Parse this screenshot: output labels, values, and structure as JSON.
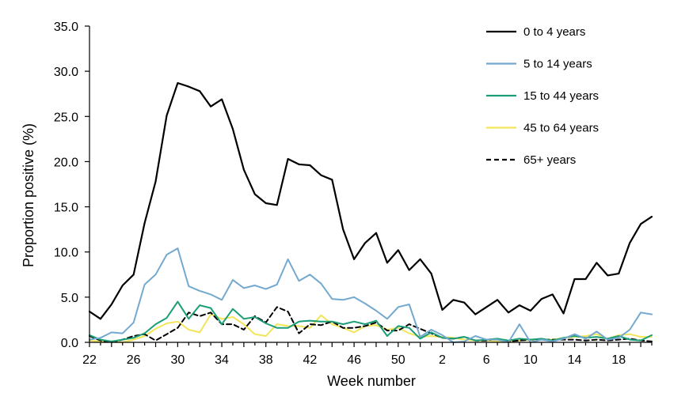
{
  "chart_data": {
    "type": "line",
    "xlabel": "Week number",
    "ylabel": "Proportion positive (%)",
    "ylim": [
      0,
      35
    ],
    "y_ticks": [
      "0.0",
      "5.0",
      "10.0",
      "15.0",
      "20.0",
      "25.0",
      "30.0",
      "35.0"
    ],
    "x_ticks": [
      "22",
      "26",
      "30",
      "34",
      "38",
      "42",
      "46",
      "50",
      "2",
      "6",
      "10",
      "14",
      "18"
    ],
    "weeks": [
      "22",
      "23",
      "24",
      "25",
      "26",
      "27",
      "28",
      "29",
      "30",
      "31",
      "32",
      "33",
      "34",
      "35",
      "36",
      "37",
      "38",
      "39",
      "40",
      "41",
      "42",
      "43",
      "44",
      "45",
      "46",
      "47",
      "48",
      "49",
      "50",
      "51",
      "52",
      "1",
      "2",
      "3",
      "4",
      "5",
      "6",
      "7",
      "8",
      "9",
      "10",
      "11",
      "12",
      "13",
      "14",
      "15",
      "16",
      "17",
      "18",
      "19",
      "20",
      "21"
    ],
    "grid": false,
    "legend_position": "top-right",
    "series": [
      {
        "name": "0 to 4 years",
        "color": "#000000",
        "dash": "solid",
        "values": [
          3.4,
          2.6,
          4.2,
          6.3,
          7.5,
          13.2,
          17.8,
          25.1,
          28.7,
          28.3,
          27.8,
          26.1,
          26.9,
          23.6,
          19.1,
          16.4,
          15.4,
          15.2,
          20.3,
          19.7,
          19.6,
          18.5,
          18.0,
          12.5,
          9.2,
          11.0,
          12.1,
          8.8,
          10.2,
          8.0,
          9.2,
          7.6,
          3.6,
          4.7,
          4.4,
          3.1,
          3.9,
          4.7,
          3.3,
          4.1,
          3.5,
          4.8,
          5.3,
          3.2,
          7.0,
          7.0,
          8.8,
          7.4,
          7.6,
          11.0,
          13.1,
          13.9
        ]
      },
      {
        "name": "5 to 14 years",
        "color": "#74a9cf",
        "dash": "solid",
        "values": [
          0.3,
          0.5,
          1.1,
          1.0,
          2.2,
          6.4,
          7.5,
          9.7,
          10.4,
          6.2,
          5.7,
          5.3,
          4.7,
          6.9,
          6.0,
          6.3,
          5.9,
          6.4,
          9.2,
          6.8,
          7.5,
          6.5,
          4.8,
          4.7,
          5.0,
          4.3,
          3.5,
          2.6,
          3.9,
          4.2,
          0.6,
          1.4,
          0.8,
          0.0,
          0.1,
          0.7,
          0.3,
          0.3,
          0.0,
          2.0,
          0.0,
          0.3,
          0.1,
          0.4,
          0.9,
          0.4,
          1.2,
          0.3,
          0.5,
          1.4,
          3.3,
          3.1
        ]
      },
      {
        "name": "15 to 44 years",
        "color": "#1b9e77",
        "dash": "solid",
        "values": [
          0.8,
          0.3,
          0.1,
          0.3,
          0.5,
          1.0,
          2.0,
          2.7,
          4.5,
          2.6,
          4.1,
          3.8,
          2.0,
          3.7,
          2.6,
          2.8,
          2.1,
          1.6,
          1.6,
          2.3,
          2.4,
          2.3,
          2.3,
          2.0,
          2.3,
          2.0,
          2.4,
          0.7,
          1.8,
          1.6,
          0.4,
          1.1,
          0.5,
          0.4,
          0.6,
          0.2,
          0.3,
          0.4,
          0.2,
          0.4,
          0.3,
          0.4,
          0.2,
          0.5,
          0.7,
          0.5,
          0.6,
          0.4,
          0.7,
          0.3,
          0.2,
          0.8
        ]
      },
      {
        "name": "45 to 64 years",
        "color": "#f3e55a",
        "dash": "solid",
        "values": [
          0.2,
          0.1,
          0.1,
          0.0,
          0.3,
          0.7,
          1.5,
          2.1,
          2.3,
          1.4,
          1.1,
          3.1,
          2.6,
          2.8,
          2.0,
          0.9,
          0.7,
          2.0,
          1.8,
          1.8,
          1.6,
          3.0,
          2.0,
          1.6,
          1.1,
          1.8,
          1.9,
          1.4,
          1.6,
          1.0,
          0.6,
          0.7,
          0.6,
          0.5,
          0.3,
          0.2,
          0.2,
          0.1,
          0.1,
          0.2,
          0.3,
          0.3,
          0.3,
          0.5,
          0.6,
          0.7,
          0.9,
          0.4,
          0.8,
          0.9,
          0.6,
          0.6
        ]
      },
      {
        "name": "65+ years",
        "color": "#000000",
        "dash": "dashed",
        "values": [
          0.7,
          0.2,
          0.0,
          0.3,
          0.7,
          0.9,
          0.2,
          0.9,
          1.6,
          3.3,
          2.9,
          3.3,
          2.0,
          2.0,
          1.4,
          2.9,
          2.2,
          3.9,
          3.4,
          1.0,
          2.0,
          1.9,
          2.3,
          1.6,
          1.6,
          1.8,
          2.2,
          1.3,
          1.3,
          2.0,
          1.5,
          1.0,
          0.5,
          0.4,
          0.6,
          0.2,
          0.2,
          0.4,
          0.1,
          0.2,
          0.3,
          0.3,
          0.3,
          0.3,
          0.3,
          0.2,
          0.3,
          0.2,
          0.3,
          0.4,
          0.2,
          0.1
        ]
      }
    ]
  }
}
